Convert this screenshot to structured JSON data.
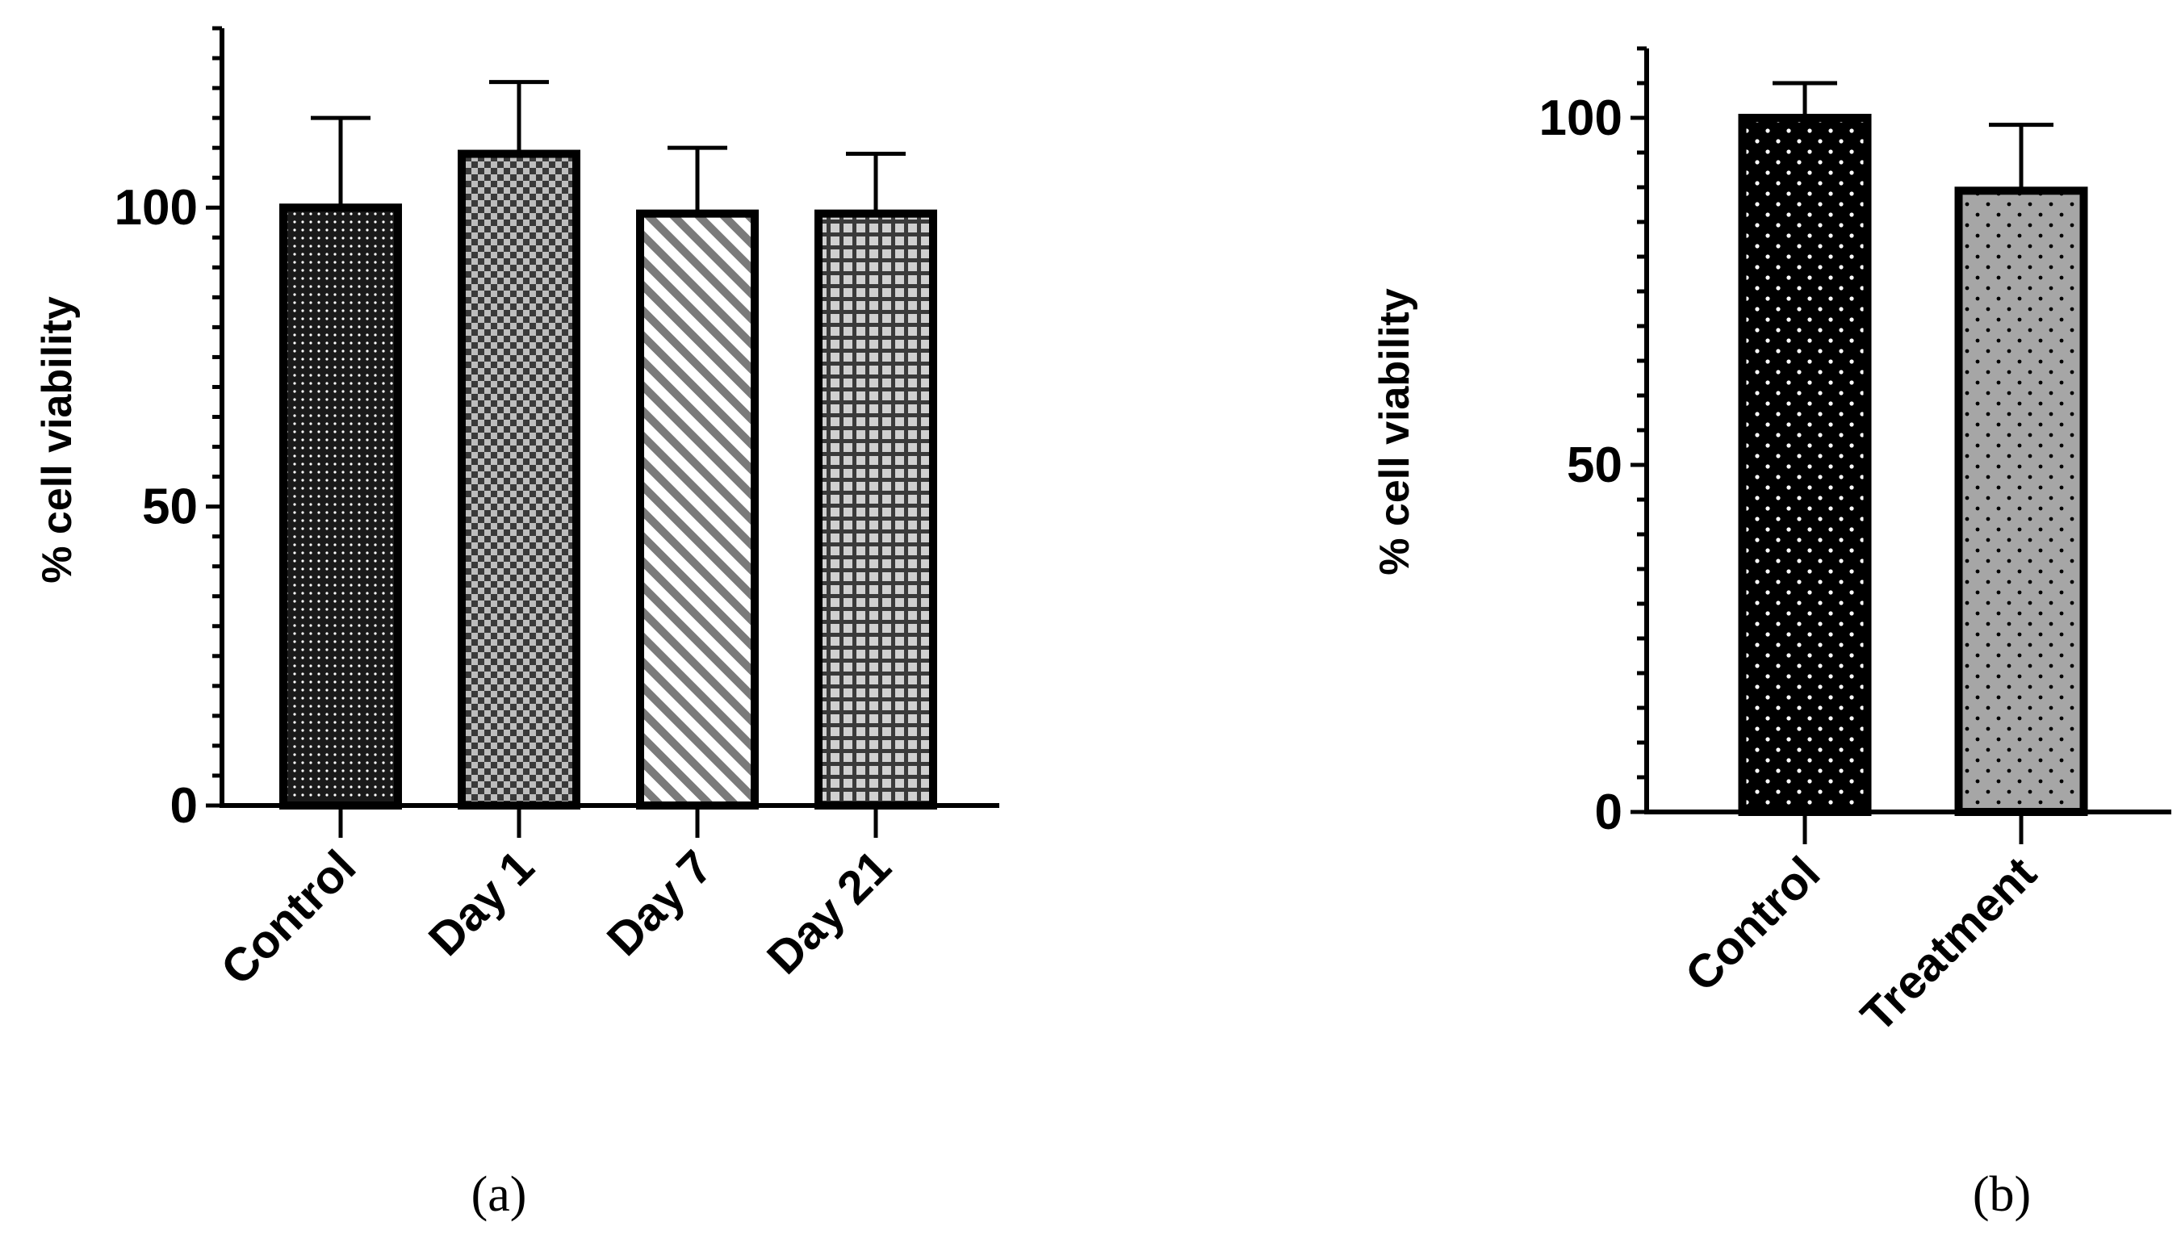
{
  "panels": [
    {
      "label": "(a)",
      "chart_data": {
        "type": "bar",
        "categories": [
          "Control",
          "Day 1",
          "Day 7",
          "Day 21"
        ],
        "values": [
          100,
          109,
          99,
          99
        ],
        "error_upper": [
          115,
          121,
          110,
          109
        ],
        "ylabel": "% cell viability",
        "ylim": [
          0,
          130
        ],
        "yticks": [
          0,
          50,
          100
        ],
        "minor_tick_step": 5,
        "patterns": [
          "dots-dense",
          "checker",
          "diagonal-stripes",
          "grid"
        ]
      }
    },
    {
      "label": "(b)",
      "chart_data": {
        "type": "bar",
        "categories": [
          "Control",
          "Treatment"
        ],
        "values": [
          100,
          89.5
        ],
        "error_upper": [
          105,
          99
        ],
        "ylabel": "% cell viability",
        "ylim": [
          0,
          110
        ],
        "yticks": [
          0,
          50,
          100
        ],
        "minor_tick_step": 5,
        "patterns": [
          "dots-white-on-black",
          "dots-black-on-gray"
        ]
      }
    }
  ]
}
